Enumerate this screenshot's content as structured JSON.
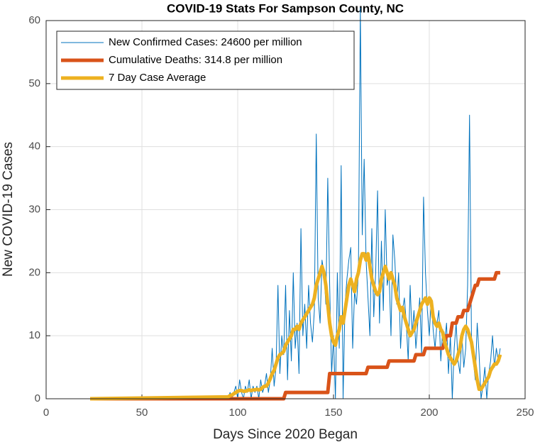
{
  "chart_data": {
    "type": "line",
    "title": "COVID-19 Stats For Sampson County, NC",
    "xlabel": "Days Since 2020 Began",
    "ylabel": "New COVID-19 Cases",
    "xlim": [
      0,
      250
    ],
    "xticks": [
      0,
      50,
      100,
      150,
      200,
      250
    ],
    "ylim": [
      0,
      60
    ],
    "yticks": [
      0,
      10,
      20,
      30,
      40,
      50,
      60
    ],
    "grid": true,
    "legend": "upper left",
    "x": [
      23,
      95,
      96,
      97,
      98,
      99,
      100,
      101,
      102,
      103,
      104,
      105,
      106,
      107,
      108,
      109,
      110,
      111,
      112,
      113,
      114,
      115,
      116,
      117,
      118,
      119,
      120,
      121,
      122,
      123,
      124,
      125,
      126,
      127,
      128,
      129,
      130,
      131,
      132,
      133,
      134,
      135,
      136,
      137,
      138,
      139,
      140,
      141,
      142,
      143,
      144,
      145,
      146,
      147,
      148,
      149,
      150,
      151,
      152,
      153,
      154,
      155,
      156,
      157,
      158,
      159,
      160,
      161,
      162,
      163,
      164,
      165,
      166,
      167,
      168,
      169,
      170,
      171,
      172,
      173,
      174,
      175,
      176,
      177,
      178,
      179,
      180,
      181,
      182,
      183,
      184,
      185,
      186,
      187,
      188,
      189,
      190,
      191,
      192,
      193,
      194,
      195,
      196,
      197,
      198,
      199,
      200,
      201,
      202,
      203,
      204,
      205,
      206,
      207,
      208,
      209,
      210,
      211,
      212,
      213,
      214,
      215,
      216,
      217,
      218,
      219,
      220,
      221,
      222,
      223,
      224,
      225,
      226,
      227,
      228,
      229,
      230,
      231,
      232,
      233,
      234,
      235,
      236,
      237
    ],
    "series": [
      {
        "name": "New Confirmed Cases: 24600 per million",
        "color": "#0072bd",
        "width": 1,
        "values": [
          0,
          0,
          1,
          0,
          1,
          2,
          0,
          3,
          1,
          0,
          2,
          1,
          3,
          0,
          2,
          1,
          2,
          0,
          3,
          1,
          2,
          4,
          1,
          3,
          8,
          2,
          5,
          18,
          4,
          10,
          7,
          18,
          3,
          14,
          6,
          20,
          8,
          12,
          4,
          27,
          10,
          15,
          8,
          18,
          12,
          9,
          14,
          42,
          16,
          12,
          22,
          20,
          15,
          35,
          18,
          4,
          10,
          0,
          20,
          8,
          37,
          0,
          15,
          19,
          22,
          24,
          8,
          17,
          15,
          20,
          62,
          26,
          38,
          22,
          16,
          10,
          27,
          13,
          20,
          33,
          12,
          25,
          14,
          30,
          18,
          20,
          10,
          26,
          22,
          15,
          20,
          8,
          14,
          16,
          12,
          6,
          18,
          10,
          14,
          8,
          12,
          16,
          7,
          32,
          20,
          14,
          10,
          16,
          11,
          8,
          12,
          14,
          6,
          11,
          9,
          12,
          4,
          10,
          0,
          8,
          12,
          6,
          4,
          10,
          5,
          8,
          18,
          45,
          10,
          6,
          3,
          12,
          7,
          0,
          2,
          5,
          0,
          4,
          6,
          10,
          5,
          8,
          6,
          8
        ]
      },
      {
        "name": "Cumulative Deaths: 314.8 per million",
        "color": "#d95319",
        "width": 5,
        "values": [
          0,
          0,
          0,
          0,
          0,
          0,
          0,
          0,
          0,
          0,
          0,
          0,
          0,
          0,
          0,
          0,
          0,
          0,
          0,
          0,
          0,
          0,
          0,
          0,
          0,
          0,
          0,
          0,
          0,
          0,
          0,
          1,
          1,
          1,
          1,
          1,
          1,
          1,
          1,
          1,
          1,
          1,
          1,
          1,
          1,
          1,
          1,
          1,
          1,
          1,
          1,
          1,
          1,
          1,
          4,
          4,
          4,
          4,
          4,
          4,
          4,
          4,
          4,
          4,
          4,
          4,
          4,
          4,
          4,
          4,
          4,
          4,
          4,
          4,
          5,
          5,
          5,
          5,
          5,
          5,
          5,
          5,
          5,
          5,
          5,
          6,
          6,
          6,
          6,
          6,
          6,
          6,
          6,
          6,
          6,
          6,
          6,
          6,
          6,
          7,
          7,
          7,
          7,
          7,
          8,
          8,
          8,
          8,
          8,
          8,
          8,
          8,
          8,
          8,
          9,
          10,
          10,
          10,
          12,
          12,
          12,
          13,
          13,
          13,
          14,
          14,
          14,
          15,
          16,
          17,
          18,
          18,
          19,
          19,
          19,
          19,
          19,
          19,
          19,
          19,
          19,
          20,
          20,
          20
        ]
      },
      {
        "name": "7 Day Case Average",
        "color": "#edb120",
        "width": 5,
        "values": [
          0,
          0.3,
          0.5,
          0.6,
          0.8,
          1,
          1.2,
          1.3,
          1.3,
          1.2,
          1.2,
          1.3,
          1.4,
          1.3,
          1.4,
          1.4,
          1.5,
          1.4,
          1.5,
          1.8,
          2,
          2,
          2.5,
          3.2,
          4,
          4.5,
          5.5,
          6.5,
          7,
          7.2,
          7.5,
          8.5,
          9,
          9.5,
          10,
          11,
          11,
          11.5,
          11,
          12,
          12.5,
          13,
          13.5,
          14,
          14.5,
          15,
          16,
          18,
          19,
          20,
          21,
          20,
          18,
          15,
          12,
          10,
          9,
          8.5,
          10,
          11,
          13,
          12,
          14,
          16,
          18,
          19,
          18,
          17,
          19,
          20,
          22,
          23,
          23,
          22,
          23,
          21,
          19,
          18,
          17,
          16.5,
          17,
          19,
          20,
          21,
          20,
          19,
          20,
          19,
          18,
          16,
          15,
          14,
          14.5,
          13,
          12,
          11,
          10,
          10.5,
          11,
          12,
          13,
          14,
          15,
          15.5,
          16,
          15,
          16,
          15.5,
          13,
          12,
          11.5,
          12,
          11,
          10.5,
          9,
          8,
          7,
          6.5,
          6,
          5.5,
          6,
          7,
          8,
          10,
          11,
          11.5,
          11,
          10,
          9,
          7,
          5,
          3,
          1.5,
          1.5,
          2,
          2.5,
          3,
          3.5,
          4.5,
          5,
          5.5,
          5.5,
          6,
          7
        ]
      }
    ]
  }
}
